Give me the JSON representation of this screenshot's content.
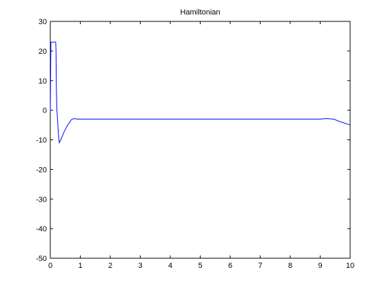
{
  "chart_data": {
    "type": "line",
    "title": "Hamiltonian",
    "xlabel": "",
    "ylabel": "",
    "xlim": [
      0,
      10
    ],
    "ylim": [
      -50,
      30
    ],
    "xticks": [
      0,
      1,
      2,
      3,
      4,
      5,
      6,
      7,
      8,
      9,
      10
    ],
    "yticks": [
      -50,
      -40,
      -30,
      -20,
      -10,
      0,
      10,
      20,
      30
    ],
    "grid": false,
    "line_color": "#0000ff",
    "series": [
      {
        "x": [
          0,
          0.02,
          0.18,
          0.19,
          0.2,
          0.22,
          0.24,
          0.27,
          0.3,
          0.35,
          0.45,
          0.55,
          0.7,
          0.8,
          0.9,
          1.0,
          2.0,
          4.0,
          6.0,
          8.0,
          9.0,
          9.2,
          9.45,
          9.7,
          10.0
        ],
        "y": [
          -0.5,
          23,
          23,
          20,
          8,
          0,
          -3,
          -8,
          -11,
          -10,
          -7.5,
          -5.5,
          -3.2,
          -2.8,
          -3.0,
          -3.0,
          -3.0,
          -3.0,
          -3.0,
          -3.0,
          -3.0,
          -2.8,
          -3.0,
          -4.0,
          -5.0
        ]
      }
    ]
  }
}
